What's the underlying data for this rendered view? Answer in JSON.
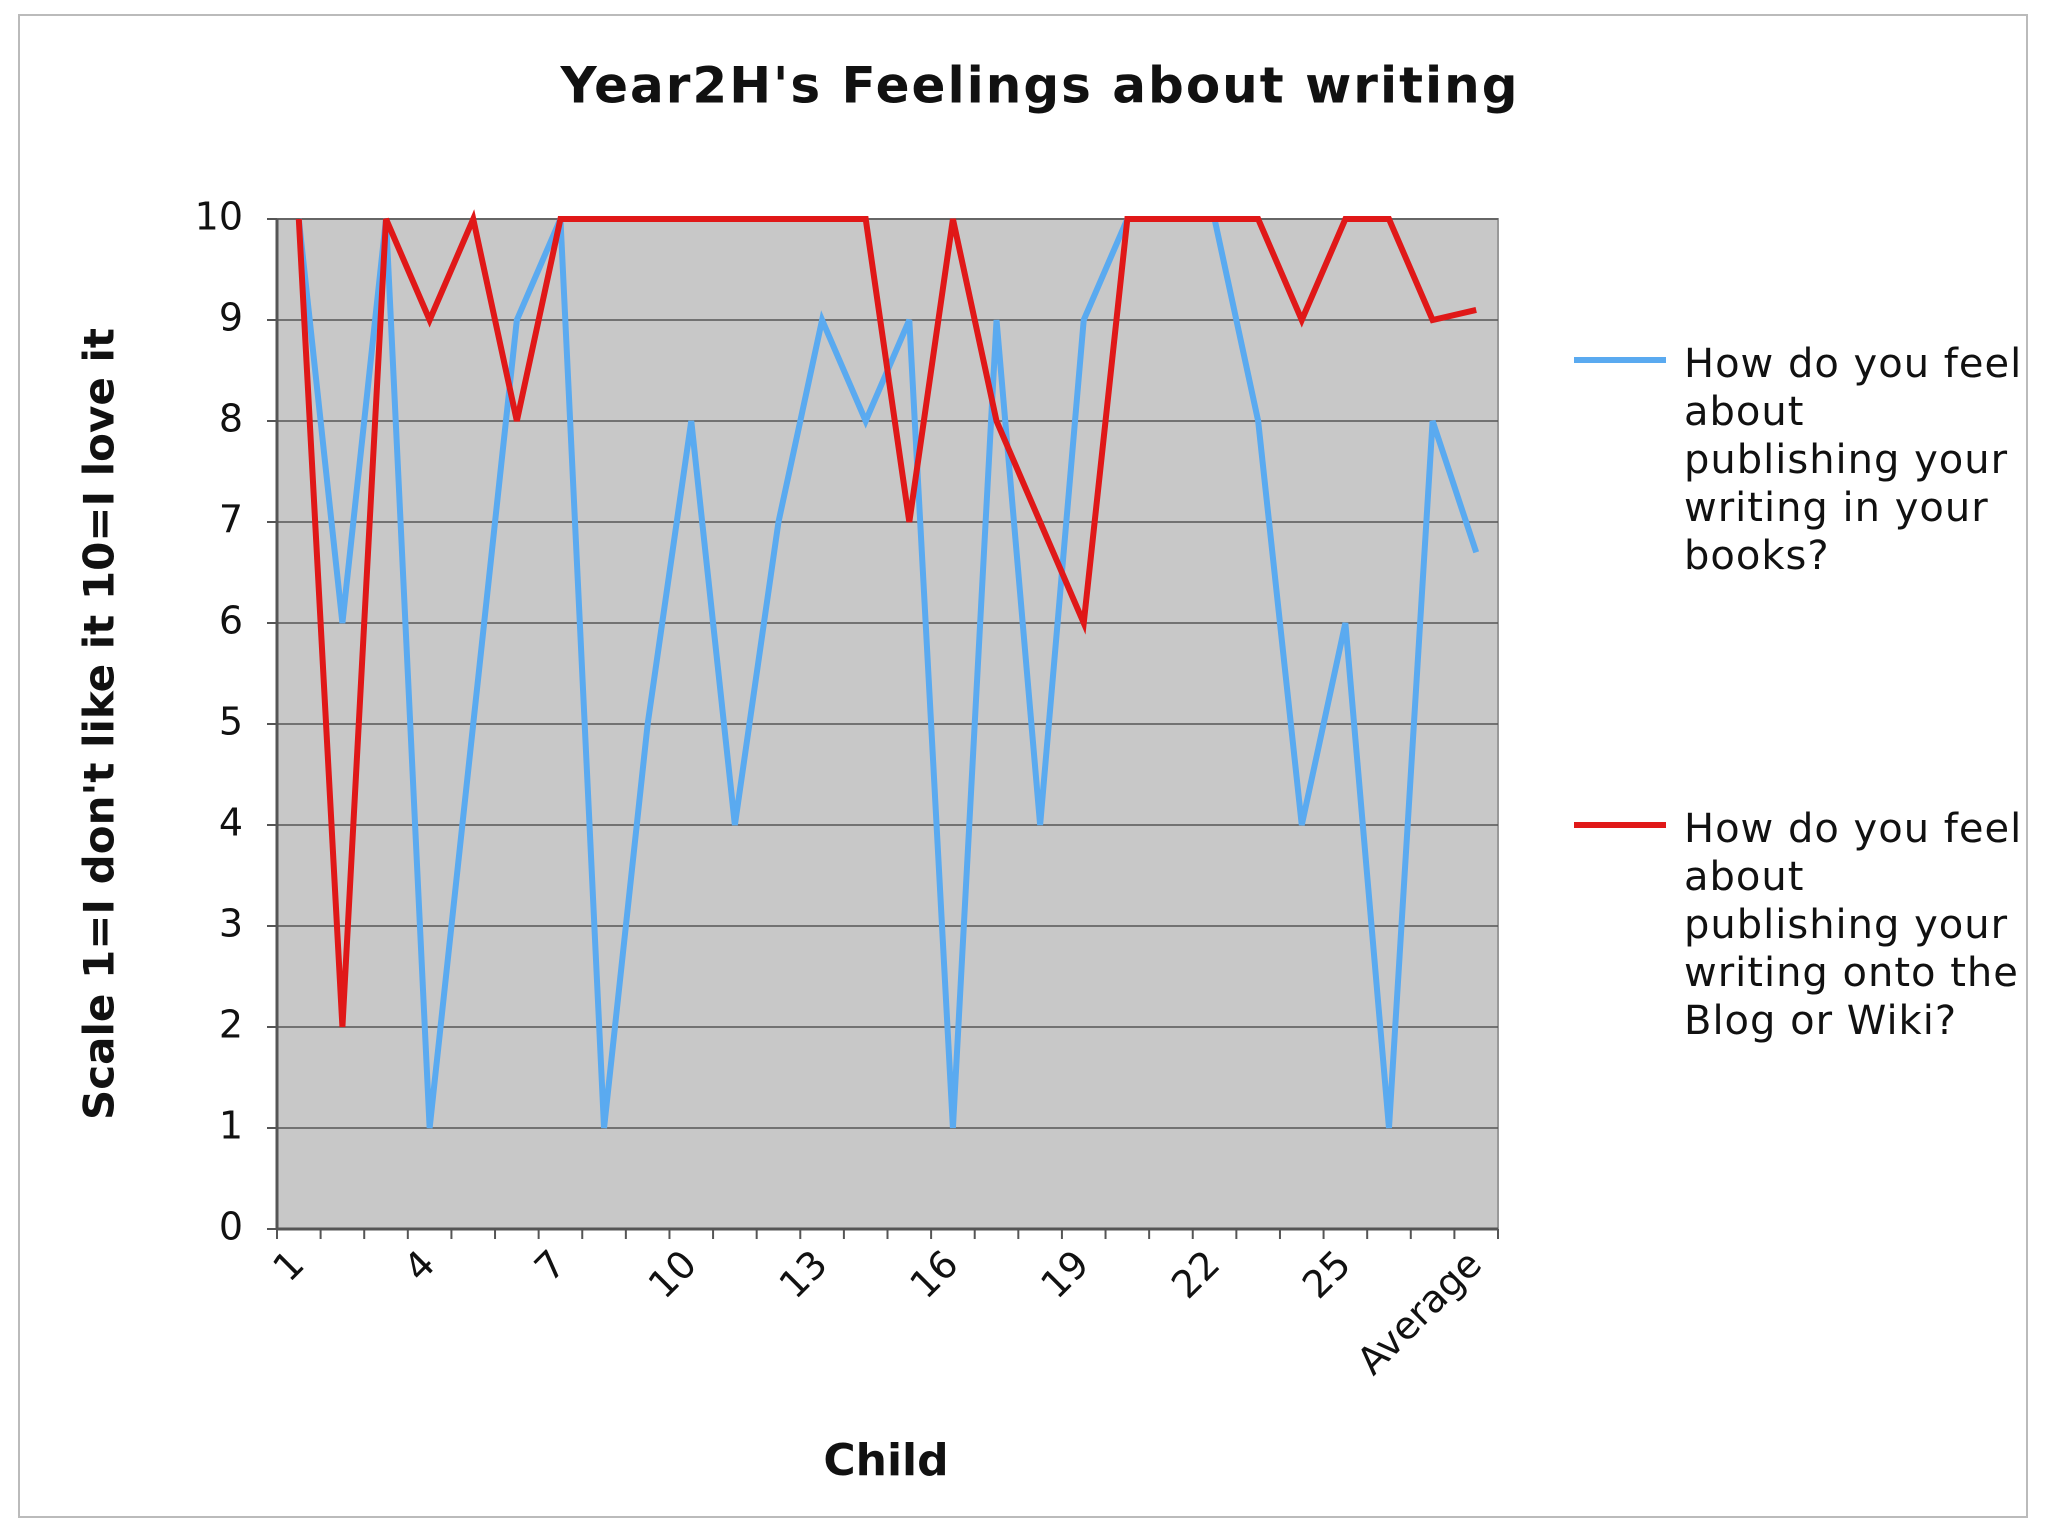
{
  "chart_data": {
    "type": "line",
    "title": "Year2H's Feelings about writing",
    "x_label": "Child",
    "y_label": "Scale 1=I don't like it 10=I love it",
    "categories": [
      "1",
      null,
      null,
      "4",
      null,
      null,
      "7",
      null,
      null,
      "10",
      null,
      null,
      "13",
      null,
      null,
      "16",
      null,
      null,
      "19",
      null,
      null,
      "22",
      null,
      null,
      "25",
      null,
      null,
      "Average"
    ],
    "series": [
      {
        "name": "How do you feel about publishing your writing in your books?",
        "color": "#5aaaf0",
        "values": [
          10,
          6,
          10,
          1,
          5,
          9,
          10,
          1,
          5,
          8,
          4,
          7,
          9,
          8,
          9,
          1,
          9,
          4,
          9,
          10,
          10,
          10,
          8,
          4,
          6,
          1,
          8,
          6.7
        ]
      },
      {
        "name": "How do you feel about publishing your writing onto the Blog or Wiki?",
        "color": "#e01818",
        "values": [
          10,
          2,
          10,
          9,
          10,
          8,
          10,
          10,
          10,
          10,
          10,
          10,
          10,
          10,
          7,
          10,
          8,
          7,
          6,
          10,
          10,
          10,
          10,
          9,
          10,
          10,
          9,
          9.1
        ]
      }
    ],
    "ylim": [
      0,
      10
    ],
    "yticks": [
      0,
      1,
      2,
      3,
      4,
      5,
      6,
      7,
      8,
      9,
      10
    ],
    "grid": true,
    "legend": "right",
    "background": "#c8c8c8"
  }
}
